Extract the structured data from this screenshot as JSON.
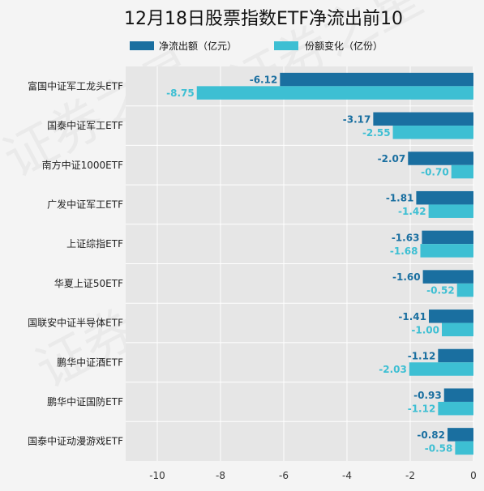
{
  "chart_data": {
    "type": "bar",
    "orientation": "horizontal",
    "title": "12月18日股票指数ETF净流出前10",
    "categories": [
      "富国中证军工龙头ETF",
      "国泰中证军工ETF",
      "南方中证1000ETF",
      "广发中证军工ETF",
      "上证综指ETF",
      "华夏上证50ETF",
      "国联安中证半导体ETF",
      "鹏华中证酒ETF",
      "鹏华中证国防ETF",
      "国泰中证动漫游戏ETF"
    ],
    "series": [
      {
        "name": "净流出额（亿元）",
        "color": "#1a6fa0",
        "values": [
          -6.12,
          -3.17,
          -2.07,
          -1.81,
          -1.63,
          -1.6,
          -1.41,
          -1.12,
          -0.93,
          -0.82
        ],
        "labels": [
          "-6.12",
          "-3.17",
          "-2.07",
          "-1.81",
          "-1.63",
          "-1.60",
          "-1.41",
          "-1.12",
          "-0.93",
          "-0.82"
        ]
      },
      {
        "name": "份额变化（亿份）",
        "color": "#3dbfd3",
        "values": [
          -8.75,
          -2.55,
          -0.7,
          -1.42,
          -1.68,
          -0.52,
          -1.0,
          -2.03,
          -1.12,
          -0.58
        ],
        "labels": [
          "-8.75",
          "-2.55",
          "-0.70",
          "-1.42",
          "-1.68",
          "-0.52",
          "-1.00",
          "-2.03",
          "-1.12",
          "-0.58"
        ]
      }
    ],
    "xlim": [
      -11,
      0
    ],
    "xticks": [
      -10,
      -8,
      -6,
      -4,
      -2,
      0
    ],
    "xtick_labels": [
      "-10",
      "-8",
      "-6",
      "-4",
      "-2",
      "0"
    ],
    "grid": true,
    "legend_position": "top"
  },
  "watermark_text": "证券之星"
}
